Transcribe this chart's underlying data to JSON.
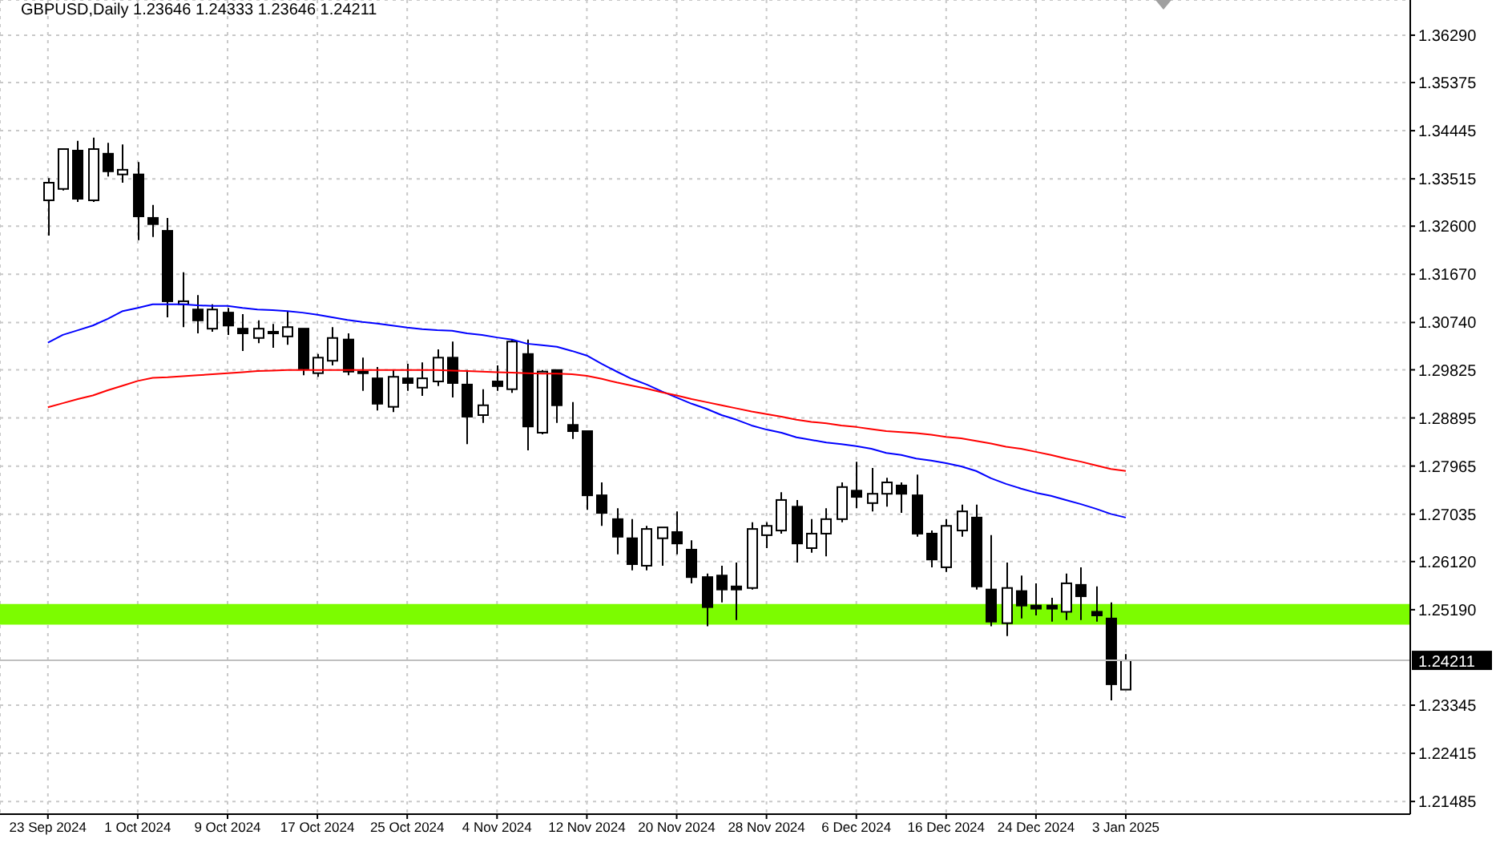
{
  "chart_data": {
    "type": "candlestick",
    "title": "GBPUSD,Daily 1.23646 1.24333 1.23646 1.24211",
    "color": "#000000",
    "categories": [
      "23 Sep 2024",
      null,
      null,
      null,
      null,
      null,
      "1 Oct 2024",
      null,
      null,
      null,
      null,
      null,
      "9 Oct 2024",
      null,
      null,
      null,
      null,
      null,
      "17 Oct 2024",
      null,
      null,
      null,
      null,
      null,
      "25 Oct 2024",
      null,
      null,
      null,
      null,
      null,
      "4 Nov 2024",
      null,
      null,
      null,
      null,
      null,
      "12 Nov 2024",
      null,
      null,
      null,
      null,
      null,
      "20 Nov 2024",
      null,
      null,
      null,
      null,
      null,
      "28 Nov 2024",
      null,
      null,
      null,
      null,
      null,
      "6 Dec 2024",
      null,
      null,
      null,
      null,
      null,
      "16 Dec 2024",
      null,
      null,
      null,
      null,
      null,
      "24 Dec 2024",
      null,
      null,
      null,
      null,
      null,
      "3 Jan 2025"
    ],
    "ohlc": [
      [
        1.331,
        1.3353,
        1.3242,
        1.3344
      ],
      [
        1.3332,
        1.3409,
        1.3329,
        1.3409
      ],
      [
        1.3406,
        1.3425,
        1.3307,
        1.3313
      ],
      [
        1.331,
        1.3431,
        1.3307,
        1.3409
      ],
      [
        1.34,
        1.3421,
        1.3356,
        1.3366
      ],
      [
        1.336,
        1.3418,
        1.3344,
        1.3369
      ],
      [
        1.336,
        1.3384,
        1.3233,
        1.3279
      ],
      [
        1.3276,
        1.3301,
        1.3239,
        1.3264
      ],
      [
        1.3251,
        1.3276,
        1.3084,
        1.3115
      ],
      [
        1.3109,
        1.3171,
        1.3065,
        1.3115
      ],
      [
        1.3099,
        1.3127,
        1.3053,
        1.3078
      ],
      [
        1.3062,
        1.3109,
        1.3056,
        1.3099
      ],
      [
        1.3093,
        1.3102,
        1.305,
        1.3068
      ],
      [
        1.3062,
        1.309,
        1.3019,
        1.3053
      ],
      [
        1.3044,
        1.3078,
        1.3034,
        1.3062
      ],
      [
        1.3056,
        1.3071,
        1.3025,
        1.3053
      ],
      [
        1.3047,
        1.3096,
        1.3031,
        1.3065
      ],
      [
        1.3062,
        1.3062,
        1.2972,
        1.2985
      ],
      [
        1.2976,
        1.3013,
        1.2969,
        1.3006
      ],
      [
        1.3,
        1.3065,
        1.2991,
        1.3044
      ],
      [
        1.3041,
        1.3053,
        1.2972,
        1.2979
      ],
      [
        1.2976,
        1.3006,
        1.2942,
        1.2979
      ],
      [
        1.2966,
        1.2988,
        1.2904,
        1.2917
      ],
      [
        1.2911,
        1.2982,
        1.2901,
        1.2969
      ],
      [
        1.2966,
        1.2994,
        1.2942,
        1.2957
      ],
      [
        1.2948,
        1.2997,
        1.2932,
        1.2966
      ],
      [
        1.296,
        1.3022,
        1.2951,
        1.3006
      ],
      [
        1.3006,
        1.3037,
        1.2929,
        1.2957
      ],
      [
        1.2954,
        1.2982,
        1.2839,
        1.2892
      ],
      [
        1.2895,
        1.2945,
        1.288,
        1.2914
      ],
      [
        1.296,
        1.2991,
        1.2942,
        1.2951
      ],
      [
        1.2945,
        1.3041,
        1.2938,
        1.3037
      ],
      [
        1.3013,
        1.3041,
        1.2827,
        1.2873
      ],
      [
        1.2861,
        1.2982,
        1.2858,
        1.2979
      ],
      [
        1.2982,
        1.2982,
        1.288,
        1.2914
      ],
      [
        1.2876,
        1.292,
        1.2849,
        1.2864
      ],
      [
        1.2864,
        1.2864,
        1.2712,
        1.274
      ],
      [
        1.274,
        1.2765,
        1.2681,
        1.2706
      ],
      [
        1.2694,
        1.2715,
        1.2626,
        1.266
      ],
      [
        1.2657,
        1.2694,
        1.2595,
        1.2607
      ],
      [
        1.2604,
        1.2681,
        1.2595,
        1.2675
      ],
      [
        1.2657,
        1.2678,
        1.2604,
        1.2678
      ],
      [
        1.2669,
        1.2709,
        1.2626,
        1.2647
      ],
      [
        1.2635,
        1.2653,
        1.257,
        1.2582
      ],
      [
        1.2582,
        1.2589,
        1.2487,
        1.2524
      ],
      [
        1.2585,
        1.2604,
        1.2533,
        1.2558
      ],
      [
        1.2564,
        1.261,
        1.2499,
        1.2558
      ],
      [
        1.2561,
        1.2688,
        1.2558,
        1.2675
      ],
      [
        1.2663,
        1.2688,
        1.2638,
        1.2681
      ],
      [
        1.2672,
        1.2746,
        1.2666,
        1.2731
      ],
      [
        1.2718,
        1.2731,
        1.261,
        1.2647
      ],
      [
        1.2638,
        1.2694,
        1.2629,
        1.2666
      ],
      [
        1.2666,
        1.2715,
        1.2622,
        1.2694
      ],
      [
        1.2694,
        1.2765,
        1.2688,
        1.2756
      ],
      [
        1.2749,
        1.2805,
        1.2715,
        1.2737
      ],
      [
        1.2725,
        1.2793,
        1.2709,
        1.2743
      ],
      [
        1.2743,
        1.2774,
        1.2718,
        1.2765
      ],
      [
        1.2759,
        1.2765,
        1.2706,
        1.2743
      ],
      [
        1.274,
        1.278,
        1.266,
        1.2666
      ],
      [
        1.2666,
        1.2672,
        1.2601,
        1.2616
      ],
      [
        1.2601,
        1.2694,
        1.2592,
        1.2681
      ],
      [
        1.2672,
        1.2722,
        1.266,
        1.2709
      ],
      [
        1.2697,
        1.2722,
        1.2558,
        1.2564
      ],
      [
        1.2558,
        1.2663,
        1.2487,
        1.2496
      ],
      [
        1.2493,
        1.261,
        1.2468,
        1.2561
      ],
      [
        1.2555,
        1.2585,
        1.2502,
        1.2527
      ],
      [
        1.2527,
        1.257,
        1.2508,
        1.2521
      ],
      [
        1.2527,
        1.2542,
        1.2496,
        1.2521
      ],
      [
        1.2515,
        1.2589,
        1.2499,
        1.257
      ],
      [
        1.2567,
        1.2601,
        1.2499,
        1.2545
      ],
      [
        1.2515,
        1.2564,
        1.2496,
        1.2508
      ],
      [
        1.2502,
        1.2533,
        1.2344,
        1.2375
      ],
      [
        1.23646,
        1.24333,
        1.23646,
        1.24211
      ]
    ],
    "series": [
      {
        "type": "line",
        "color": "#0000ff",
        "values": [
          1.3035,
          1.305,
          1.3059,
          1.3068,
          1.3081,
          1.3096,
          1.3102,
          1.3109,
          1.3109,
          1.3109,
          1.3107,
          1.3106,
          1.3106,
          1.3102,
          1.3099,
          1.3098,
          1.3096,
          1.3093,
          1.3089,
          1.3084,
          1.3079,
          1.3075,
          1.3072,
          1.3068,
          1.3064,
          1.3061,
          1.3059,
          1.3058,
          1.3053,
          1.305,
          1.3045,
          1.3041,
          1.3033,
          1.303,
          1.3027,
          1.3019,
          1.301,
          1.2994,
          1.2979,
          1.2965,
          1.2954,
          1.2941,
          1.2929,
          1.2917,
          1.2907,
          1.2895,
          1.2886,
          1.2875,
          1.2867,
          1.2861,
          1.2852,
          1.2847,
          1.2842,
          1.2839,
          1.2835,
          1.283,
          1.2822,
          1.2818,
          1.2811,
          1.2807,
          1.2802,
          1.2796,
          1.2787,
          1.2773,
          1.2762,
          1.2753,
          1.2745,
          1.2739,
          1.2731,
          1.2723,
          1.2714,
          1.2704,
          1.2697
        ]
      },
      {
        "type": "line",
        "color": "#ff0000",
        "values": [
          1.291,
          1.2918,
          1.2926,
          1.2933,
          1.2943,
          1.2952,
          1.2961,
          1.2967,
          1.2968,
          1.297,
          1.2972,
          1.2974,
          1.2976,
          1.2978,
          1.298,
          1.2981,
          1.2982,
          1.2982,
          1.2982,
          1.2982,
          1.2982,
          1.2982,
          1.2982,
          1.2982,
          1.2982,
          1.2982,
          1.2982,
          1.2981,
          1.298,
          1.2979,
          1.2978,
          1.2977,
          1.2976,
          1.2975,
          1.2975,
          1.2974,
          1.2971,
          1.2965,
          1.2958,
          1.2952,
          1.2946,
          1.2939,
          1.2933,
          1.2926,
          1.292,
          1.2914,
          1.2908,
          1.2902,
          1.2897,
          1.2892,
          1.2886,
          1.2882,
          1.2879,
          1.2875,
          1.2872,
          1.2868,
          1.2864,
          1.2862,
          1.286,
          1.2857,
          1.2853,
          1.285,
          1.2845,
          1.284,
          1.2834,
          1.283,
          1.2824,
          1.2818,
          1.2811,
          1.2805,
          1.2798,
          1.2791,
          1.2787
        ]
      }
    ],
    "ylim": [
      1.2124,
      1.3697
    ],
    "yticks": [
      {
        "value": 1.3629,
        "label": "1.36290"
      },
      1.35375,
      1.34445,
      1.33515,
      {
        "value": 1.326,
        "label": "1.32600"
      },
      {
        "value": 1.3167,
        "label": "1.31670"
      },
      {
        "value": 1.3074,
        "label": "1.30740"
      },
      1.29825,
      1.28895,
      1.27965,
      1.27035,
      {
        "value": 1.2612,
        "label": "1.26120"
      },
      {
        "value": 1.2519,
        "label": "1.25190"
      },
      1.23345,
      1.22415,
      1.21485
    ],
    "grid": true,
    "bands": [
      {
        "axis": "y",
        "from": 1.249,
        "to": 1.253,
        "color": "#7cfc00"
      }
    ],
    "ref_lines": [
      {
        "axis": "y",
        "value": 1.24211,
        "label": "1.24211",
        "color": "#c0c0c0"
      }
    ]
  }
}
